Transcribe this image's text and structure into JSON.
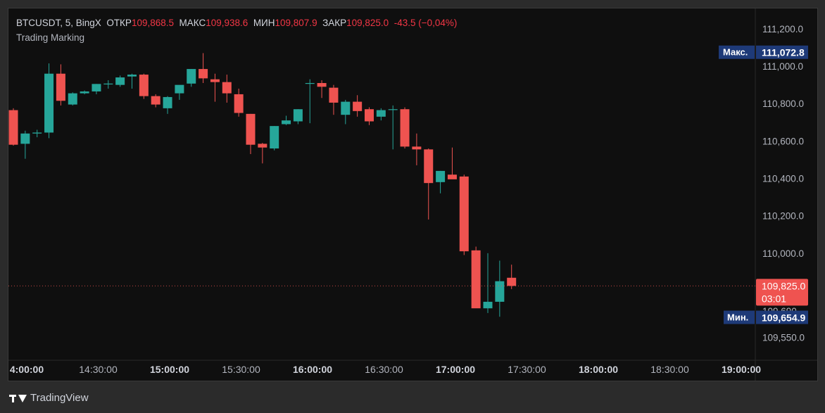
{
  "header": {
    "symbol": "BTCUSDT, 5, BingX",
    "open_label": "ОТКР",
    "open": "109,868.5",
    "high_label": "МАКС",
    "high": "109,938.6",
    "low_label": "МИН",
    "low": "109,807.9",
    "close_label": "ЗАКР",
    "close": "109,825.0",
    "change": "-43.5 (−0,04%)",
    "indicator": "Trading Marking"
  },
  "footer": {
    "brand": "TradingView"
  },
  "colors": {
    "up": "#26a69a",
    "down": "#ef5350",
    "bg": "#0f0f0f",
    "text": "#d1d4dc",
    "label_bg": "#1e3a78"
  },
  "chart_data": {
    "type": "candlestick",
    "ylim": [
      109480,
      111260
    ],
    "y_ticks": [
      111200,
      111000,
      110800,
      110600,
      110400,
      110200,
      110000,
      109800,
      109690,
      109550
    ],
    "y_tick_labels": [
      "111,200.0",
      "111,000.0",
      "110,800.0",
      "110,600.0",
      "110,400.0",
      "110,200.0",
      "110,000.0",
      "109,8..0",
      "109,690",
      "109,550.0"
    ],
    "x_ticks": [
      "4:00:00",
      "14:30:00",
      "15:00:00",
      "15:30:00",
      "16:00:00",
      "16:30:00",
      "17:00:00",
      "17:30:00",
      "18:00:00",
      "18:30:00",
      "19:00:00"
    ],
    "x_tick_bold": [
      true,
      false,
      true,
      false,
      true,
      false,
      true,
      false,
      true,
      false,
      true
    ],
    "max_label": "Макс.",
    "max_value": "111,072.8",
    "max_price": 111072.8,
    "min_label": "Мин.",
    "min_value": "109,654.9",
    "min_price": 109654.9,
    "last_price": 109825.0,
    "last_label": "109,825.0",
    "countdown": "03:01",
    "candles": [
      {
        "o": 110765,
        "h": 110775,
        "l": 110575,
        "c": 110580
      },
      {
        "o": 110585,
        "h": 110655,
        "l": 110505,
        "c": 110640
      },
      {
        "o": 110640,
        "h": 110660,
        "l": 110620,
        "c": 110645
      },
      {
        "o": 110645,
        "h": 111015,
        "l": 110615,
        "c": 110960
      },
      {
        "o": 110960,
        "h": 111010,
        "l": 110790,
        "c": 110815
      },
      {
        "o": 110795,
        "h": 110860,
        "l": 110790,
        "c": 110855
      },
      {
        "o": 110855,
        "h": 110870,
        "l": 110850,
        "c": 110865
      },
      {
        "o": 110865,
        "h": 110905,
        "l": 110850,
        "c": 110905
      },
      {
        "o": 110905,
        "h": 110925,
        "l": 110880,
        "c": 110907
      },
      {
        "o": 110900,
        "h": 110950,
        "l": 110890,
        "c": 110940
      },
      {
        "o": 110945,
        "h": 110960,
        "l": 110880,
        "c": 110955
      },
      {
        "o": 110955,
        "h": 110960,
        "l": 110825,
        "c": 110840
      },
      {
        "o": 110840,
        "h": 110850,
        "l": 110780,
        "c": 110795
      },
      {
        "o": 110775,
        "h": 110840,
        "l": 110745,
        "c": 110835
      },
      {
        "o": 110855,
        "h": 110895,
        "l": 110820,
        "c": 110900
      },
      {
        "o": 110907,
        "h": 110985,
        "l": 110890,
        "c": 110985
      },
      {
        "o": 110985,
        "h": 111070,
        "l": 110910,
        "c": 110935
      },
      {
        "o": 110930,
        "h": 110960,
        "l": 110810,
        "c": 110915
      },
      {
        "o": 110915,
        "h": 110955,
        "l": 110805,
        "c": 110855
      },
      {
        "o": 110850,
        "h": 110880,
        "l": 110730,
        "c": 110750
      },
      {
        "o": 110745,
        "h": 110745,
        "l": 110530,
        "c": 110580
      },
      {
        "o": 110585,
        "h": 110590,
        "l": 110480,
        "c": 110565
      },
      {
        "o": 110560,
        "h": 110680,
        "l": 110550,
        "c": 110680
      },
      {
        "o": 110690,
        "h": 110735,
        "l": 110685,
        "c": 110710
      },
      {
        "o": 110705,
        "h": 110770,
        "l": 110690,
        "c": 110770
      },
      {
        "o": 110910,
        "h": 110930,
        "l": 110695,
        "c": 110910
      },
      {
        "o": 110910,
        "h": 110925,
        "l": 110830,
        "c": 110890
      },
      {
        "o": 110885,
        "h": 110900,
        "l": 110740,
        "c": 110805
      },
      {
        "o": 110740,
        "h": 110820,
        "l": 110690,
        "c": 110810
      },
      {
        "o": 110810,
        "h": 110845,
        "l": 110730,
        "c": 110760
      },
      {
        "o": 110770,
        "h": 110780,
        "l": 110685,
        "c": 110705
      },
      {
        "o": 110730,
        "h": 110775,
        "l": 110710,
        "c": 110765
      },
      {
        "o": 110770,
        "h": 110790,
        "l": 110555,
        "c": 110770
      },
      {
        "o": 110770,
        "h": 110780,
        "l": 110560,
        "c": 110570
      },
      {
        "o": 110570,
        "h": 110640,
        "l": 110470,
        "c": 110555
      },
      {
        "o": 110555,
        "h": 110560,
        "l": 110180,
        "c": 110375
      },
      {
        "o": 110380,
        "h": 110440,
        "l": 110320,
        "c": 110440
      },
      {
        "o": 110420,
        "h": 110565,
        "l": 110400,
        "c": 110395
      },
      {
        "o": 110410,
        "h": 110420,
        "l": 109990,
        "c": 110010
      },
      {
        "o": 110015,
        "h": 110035,
        "l": 109710,
        "c": 109705
      },
      {
        "o": 109705,
        "h": 110000,
        "l": 109680,
        "c": 109740
      },
      {
        "o": 109740,
        "h": 109960,
        "l": 109660,
        "c": 109850
      },
      {
        "o": 109868.5,
        "h": 109938.6,
        "l": 109807.9,
        "c": 109825.0
      }
    ]
  }
}
